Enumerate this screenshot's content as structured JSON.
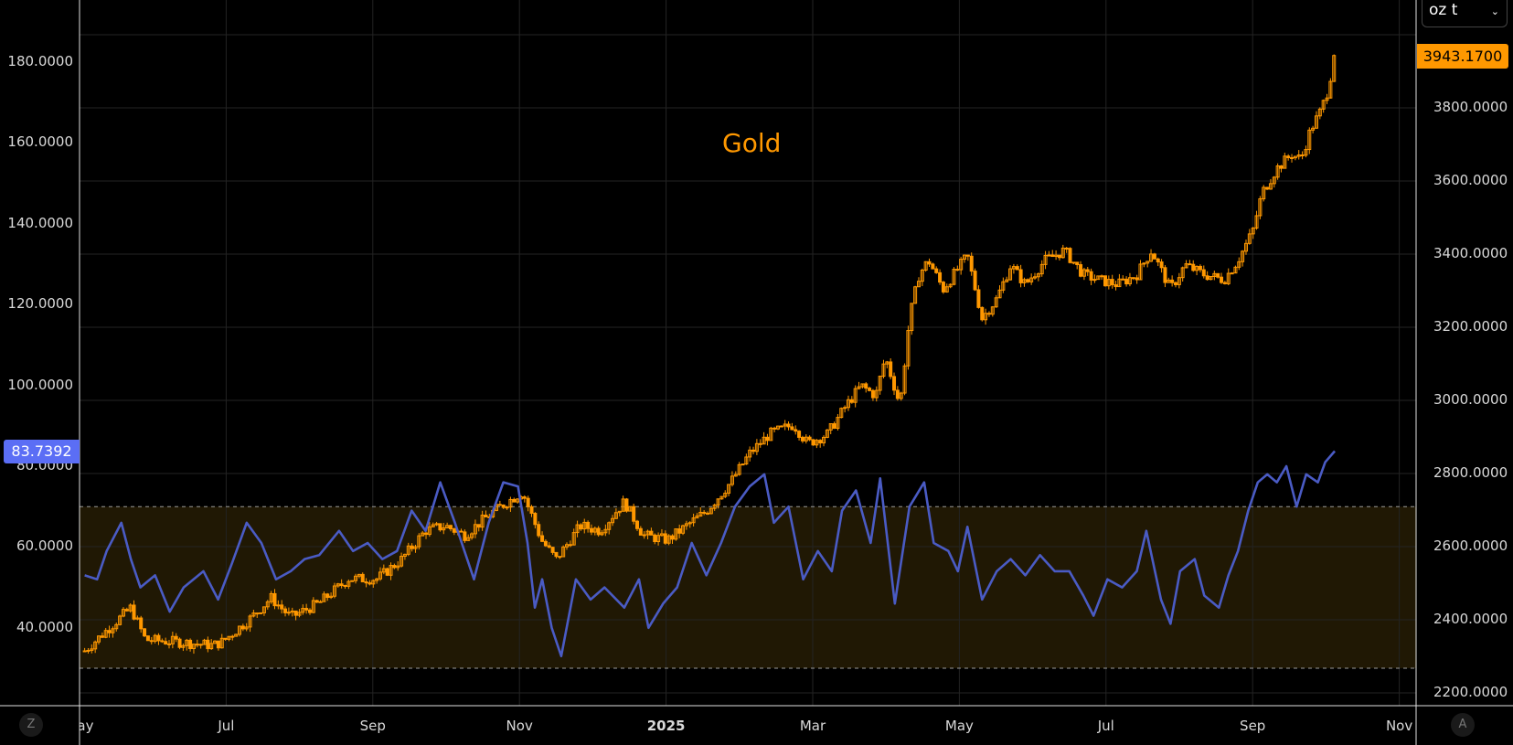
{
  "unit_selector": {
    "value": "oz t",
    "chevron": "⌄"
  },
  "last_price_label": "3943.1700",
  "rsi_value_label": "83.7392",
  "buttons": {
    "left": "Z",
    "right": "A"
  },
  "colors": {
    "gold": "#ff9800",
    "rsi": "#4a5bc4",
    "band": "#201804",
    "grid": "#1e1e1e",
    "axis": "#e0e0e0",
    "rsi_tag": "#5b6ef5"
  },
  "chart_data": {
    "type": "line",
    "title": "Gold",
    "x_unit": "months since 2024-05-01",
    "x_ticks": [
      {
        "t": 0,
        "label": "May"
      },
      {
        "t": 2,
        "label": "Jul"
      },
      {
        "t": 4,
        "label": "Sep"
      },
      {
        "t": 6,
        "label": "Nov"
      },
      {
        "t": 8,
        "label": "2025",
        "year": true
      },
      {
        "t": 10,
        "label": "Mar"
      },
      {
        "t": 12,
        "label": "May"
      },
      {
        "t": 14,
        "label": "Jul"
      },
      {
        "t": 16,
        "label": "Sep"
      },
      {
        "t": 18,
        "label": "Nov"
      }
    ],
    "left_axis": {
      "ticks": [
        "180.0000",
        "160.0000",
        "140.0000",
        "120.0000",
        "100.0000",
        "80.0000",
        "60.0000",
        "40.0000"
      ],
      "values": [
        180,
        160,
        140,
        120,
        100,
        80,
        60,
        40
      ]
    },
    "right_axis": {
      "ticks": [
        "3800.0000",
        "3600.0000",
        "3400.0000",
        "3200.0000",
        "3000.0000",
        "2800.0000",
        "2600.0000",
        "2400.0000",
        "2200.0000"
      ],
      "values": [
        3800,
        3600,
        3400,
        3200,
        3000,
        2800,
        2600,
        2400,
        2200
      ]
    },
    "band": {
      "low": 30,
      "high": 70
    },
    "series": [
      {
        "name": "Gold",
        "kind": "candlestick",
        "axis": "right",
        "last": 3943.17,
        "points": [
          [
            0.07,
            2315
          ],
          [
            0.7,
            2433
          ],
          [
            0.9,
            2345
          ],
          [
            1.3,
            2340
          ],
          [
            1.82,
            2330
          ],
          [
            1.95,
            2340
          ],
          [
            2.35,
            2407
          ],
          [
            2.61,
            2460
          ],
          [
            2.88,
            2407
          ],
          [
            3.27,
            2446
          ],
          [
            3.67,
            2512
          ],
          [
            4.06,
            2512
          ],
          [
            4.39,
            2565
          ],
          [
            4.72,
            2644
          ],
          [
            4.99,
            2657
          ],
          [
            5.25,
            2631
          ],
          [
            5.65,
            2697
          ],
          [
            6.04,
            2750
          ],
          [
            6.3,
            2618
          ],
          [
            6.5,
            2565
          ],
          [
            6.83,
            2657
          ],
          [
            7.1,
            2644
          ],
          [
            7.43,
            2723
          ],
          [
            7.69,
            2631
          ],
          [
            8.02,
            2618
          ],
          [
            8.28,
            2657
          ],
          [
            8.55,
            2697
          ],
          [
            8.88,
            2776
          ],
          [
            9.14,
            2855
          ],
          [
            9.41,
            2908
          ],
          [
            9.74,
            2934
          ],
          [
            9.93,
            2882
          ],
          [
            10.2,
            2908
          ],
          [
            10.46,
            2987
          ],
          [
            10.66,
            3040
          ],
          [
            10.86,
            3013
          ],
          [
            10.99,
            3119
          ],
          [
            11.19,
            2987
          ],
          [
            11.32,
            3225
          ],
          [
            11.45,
            3344
          ],
          [
            11.58,
            3383
          ],
          [
            11.78,
            3304
          ],
          [
            12.11,
            3396
          ],
          [
            12.31,
            3225
          ],
          [
            12.51,
            3278
          ],
          [
            12.7,
            3370
          ],
          [
            12.9,
            3317
          ],
          [
            13.17,
            3383
          ],
          [
            13.43,
            3410
          ],
          [
            13.69,
            3344
          ],
          [
            13.89,
            3330
          ],
          [
            14.16,
            3317
          ],
          [
            14.42,
            3344
          ],
          [
            14.62,
            3410
          ],
          [
            14.88,
            3304
          ],
          [
            15.08,
            3370
          ],
          [
            15.34,
            3344
          ],
          [
            15.61,
            3330
          ],
          [
            15.8,
            3383
          ],
          [
            16.0,
            3462
          ],
          [
            16.13,
            3568
          ],
          [
            16.33,
            3634
          ],
          [
            16.53,
            3673
          ],
          [
            16.66,
            3660
          ],
          [
            16.79,
            3740
          ],
          [
            16.93,
            3792
          ],
          [
            17.02,
            3845
          ],
          [
            17.12,
            3943.17
          ]
        ]
      },
      {
        "name": "RSI",
        "kind": "line",
        "axis": "left",
        "last": 83.7392,
        "points": [
          [
            0.07,
            53
          ],
          [
            0.24,
            52
          ],
          [
            0.37,
            59
          ],
          [
            0.57,
            66
          ],
          [
            0.7,
            57
          ],
          [
            0.83,
            50
          ],
          [
            1.03,
            53
          ],
          [
            1.23,
            44
          ],
          [
            1.42,
            50
          ],
          [
            1.69,
            54
          ],
          [
            1.89,
            47
          ],
          [
            2.08,
            56
          ],
          [
            2.28,
            66
          ],
          [
            2.48,
            61
          ],
          [
            2.68,
            52
          ],
          [
            2.88,
            54
          ],
          [
            3.07,
            57
          ],
          [
            3.27,
            58
          ],
          [
            3.54,
            64
          ],
          [
            3.73,
            59
          ],
          [
            3.93,
            61
          ],
          [
            4.13,
            57
          ],
          [
            4.33,
            59
          ],
          [
            4.53,
            69
          ],
          [
            4.72,
            64
          ],
          [
            4.92,
            76
          ],
          [
            5.12,
            66
          ],
          [
            5.38,
            52
          ],
          [
            5.58,
            66
          ],
          [
            5.78,
            76
          ],
          [
            5.98,
            75
          ],
          [
            6.11,
            61
          ],
          [
            6.21,
            45
          ],
          [
            6.31,
            52
          ],
          [
            6.44,
            40
          ],
          [
            6.57,
            33
          ],
          [
            6.77,
            52
          ],
          [
            6.97,
            47
          ],
          [
            7.16,
            50
          ],
          [
            7.43,
            45
          ],
          [
            7.63,
            52
          ],
          [
            7.76,
            40
          ],
          [
            7.96,
            46
          ],
          [
            8.15,
            50
          ],
          [
            8.35,
            61
          ],
          [
            8.55,
            53
          ],
          [
            8.75,
            61
          ],
          [
            8.94,
            70
          ],
          [
            9.14,
            75
          ],
          [
            9.34,
            78
          ],
          [
            9.47,
            66
          ],
          [
            9.67,
            70
          ],
          [
            9.87,
            52
          ],
          [
            10.07,
            59
          ],
          [
            10.26,
            54
          ],
          [
            10.4,
            69
          ],
          [
            10.59,
            74
          ],
          [
            10.79,
            61
          ],
          [
            10.92,
            77
          ],
          [
            11.12,
            46
          ],
          [
            11.32,
            70
          ],
          [
            11.52,
            76
          ],
          [
            11.65,
            61
          ],
          [
            11.85,
            59
          ],
          [
            11.98,
            54
          ],
          [
            12.11,
            65
          ],
          [
            12.31,
            47
          ],
          [
            12.51,
            54
          ],
          [
            12.7,
            57
          ],
          [
            12.9,
            53
          ],
          [
            13.1,
            58
          ],
          [
            13.3,
            54
          ],
          [
            13.5,
            54
          ],
          [
            13.69,
            48
          ],
          [
            13.83,
            43
          ],
          [
            14.02,
            52
          ],
          [
            14.22,
            50
          ],
          [
            14.42,
            54
          ],
          [
            14.55,
            64
          ],
          [
            14.75,
            47
          ],
          [
            14.88,
            41
          ],
          [
            15.01,
            54
          ],
          [
            15.21,
            57
          ],
          [
            15.34,
            48
          ],
          [
            15.54,
            45
          ],
          [
            15.67,
            53
          ],
          [
            15.8,
            59
          ],
          [
            15.94,
            69
          ],
          [
            16.07,
            76
          ],
          [
            16.2,
            78
          ],
          [
            16.33,
            76
          ],
          [
            16.46,
            80
          ],
          [
            16.6,
            70
          ],
          [
            16.73,
            78
          ],
          [
            16.89,
            76
          ],
          [
            16.99,
            81
          ],
          [
            17.12,
            83.7392
          ]
        ]
      }
    ]
  }
}
